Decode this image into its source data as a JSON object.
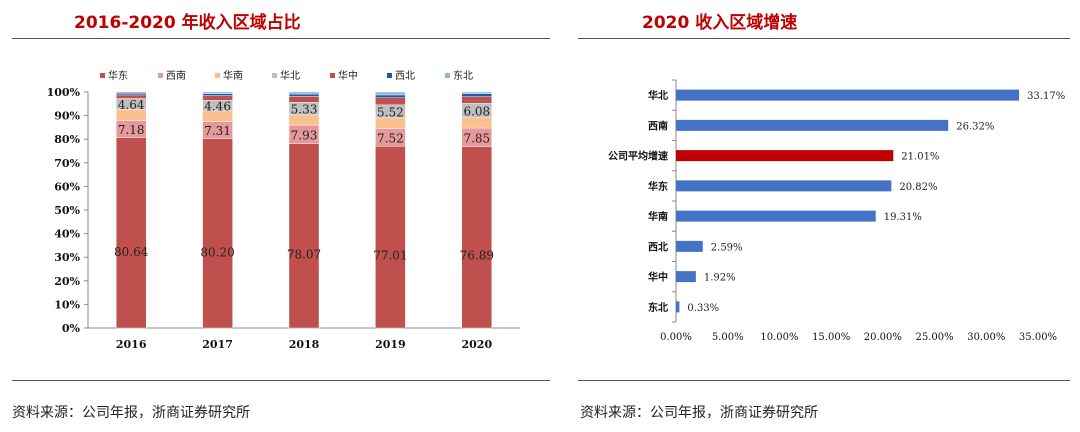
{
  "left": {
    "title": "2016-2020 年收入区域占比",
    "source": "资料来源：公司年报，浙商证券研究所"
  },
  "right": {
    "title": "2020 收入区域增速",
    "source": "资料来源：公司年报，浙商证券研究所"
  },
  "colors": {
    "title_red": "#c00000",
    "east_china": "#c0504d",
    "southwest": "#e6999a",
    "south_china": "#fac090",
    "north_china": "#bfbfbf",
    "central_china": "#c0504d",
    "northwest": "#1f5aa6",
    "northeast": "#8db3e2",
    "bar_blue": "#4472c4",
    "bar_highlight": "#c00000"
  },
  "chart_data": [
    {
      "type": "bar",
      "stacked": true,
      "categories": [
        "2016",
        "2017",
        "2018",
        "2019",
        "2020"
      ],
      "ylim": [
        0,
        100
      ],
      "yticks": [
        "0%",
        "10%",
        "20%",
        "30%",
        "40%",
        "50%",
        "60%",
        "70%",
        "80%",
        "90%",
        "100%"
      ],
      "legend_position": "top",
      "series": [
        {
          "name": "华东",
          "values": [
            80.64,
            80.2,
            78.07,
            77.01,
            76.89
          ],
          "labels": [
            "80.64",
            "80.20",
            "78.07",
            "77.01",
            "76.89"
          ]
        },
        {
          "name": "西南",
          "values": [
            7.18,
            7.31,
            7.93,
            7.52,
            7.85
          ],
          "labels": [
            "7.18",
            "7.31",
            "7.93",
            "7.52",
            "7.85"
          ]
        },
        {
          "name": "华南",
          "values": [
            4.8,
            4.5,
            4.3,
            4.5,
            4.4
          ]
        },
        {
          "name": "华北",
          "values": [
            4.64,
            4.46,
            5.33,
            5.52,
            6.08
          ],
          "labels": [
            "4.64",
            "4.46",
            "5.33",
            "5.52",
            "6.08"
          ]
        },
        {
          "name": "华中",
          "values": [
            1.5,
            2.0,
            2.5,
            3.0,
            2.8
          ]
        },
        {
          "name": "西北",
          "values": [
            0.7,
            0.8,
            1.0,
            1.2,
            1.3
          ]
        },
        {
          "name": "东北",
          "values": [
            0.54,
            0.73,
            0.87,
            1.23,
            0.68
          ]
        }
      ]
    },
    {
      "type": "bar",
      "orientation": "horizontal",
      "categories": [
        "华北",
        "西南",
        "公司平均增速",
        "华东",
        "华南",
        "西北",
        "华中",
        "东北"
      ],
      "values": [
        33.17,
        26.32,
        21.01,
        20.82,
        19.31,
        2.59,
        1.92,
        0.33
      ],
      "value_labels": [
        "33.17%",
        "26.32%",
        "21.01%",
        "20.82%",
        "19.31%",
        "2.59%",
        "1.92%",
        "0.33%"
      ],
      "highlight": "公司平均增速",
      "xlim": [
        0,
        35
      ],
      "xticks": [
        "0.00%",
        "5.00%",
        "10.00%",
        "15.00%",
        "20.00%",
        "25.00%",
        "30.00%",
        "35.00%"
      ]
    }
  ]
}
